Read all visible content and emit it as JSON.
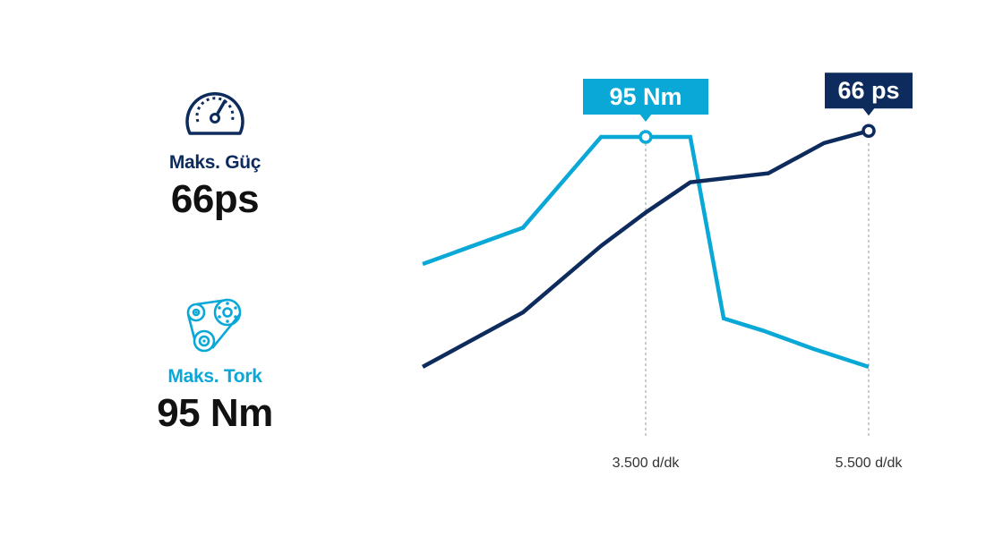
{
  "colors": {
    "power": "#0d2b5c",
    "torque": "#09a8d6"
  },
  "stats": {
    "power": {
      "icon": "speedometer-icon",
      "label": "Maks. Güç",
      "value": "66ps"
    },
    "torque": {
      "icon": "belt-pulley-icon",
      "label": "Maks. Tork",
      "value": "95 Nm"
    }
  },
  "chart_data": {
    "type": "line",
    "xlabel": "",
    "ylabel": "",
    "grid": false,
    "legend": "none",
    "x_ticks": [
      {
        "rpm": 3500,
        "label": "3.500 d/dk"
      },
      {
        "rpm": 5500,
        "label": "5.500 d/dk"
      }
    ],
    "series": [
      {
        "key": "torque",
        "points": [
          [
            1500,
            58
          ],
          [
            2400,
            70
          ],
          [
            3100,
            100
          ],
          [
            3500,
            100
          ],
          [
            3900,
            100
          ],
          [
            4200,
            40
          ],
          [
            4550,
            36
          ],
          [
            5000,
            30
          ],
          [
            5500,
            24
          ]
        ],
        "peak": {
          "x": 3500,
          "y": 100,
          "label": "95 Nm"
        }
      },
      {
        "key": "power",
        "points": [
          [
            1500,
            24
          ],
          [
            2400,
            42
          ],
          [
            3100,
            64
          ],
          [
            3500,
            75
          ],
          [
            3900,
            85
          ],
          [
            4600,
            88
          ],
          [
            5100,
            98
          ],
          [
            5500,
            102
          ]
        ],
        "peak": {
          "x": 5500,
          "y": 102,
          "label": "66 ps"
        }
      }
    ]
  }
}
